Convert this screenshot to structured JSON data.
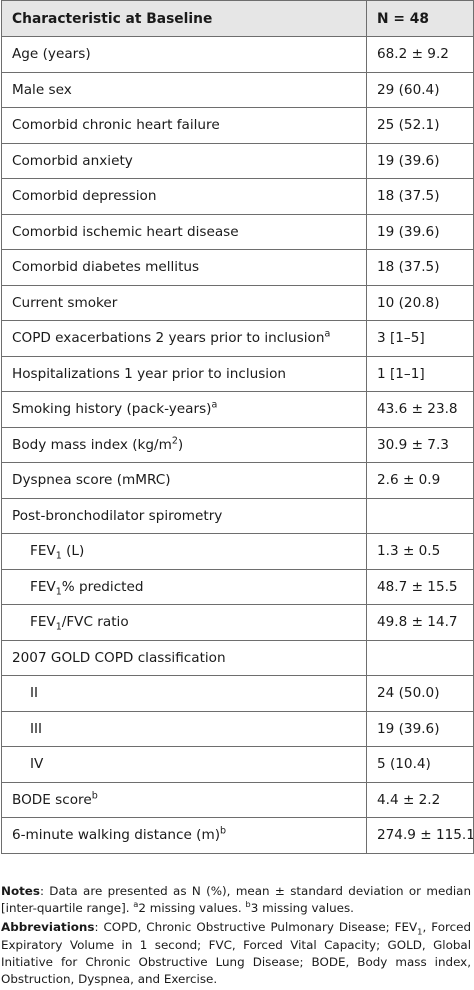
{
  "table": {
    "header": {
      "characteristic": "Characteristic at Baseline",
      "value": "N = 48"
    },
    "rows": [
      {
        "pre": "Age (years)",
        "val": "68.2 ± 9.2"
      },
      {
        "pre": "Male sex",
        "val": "29 (60.4)"
      },
      {
        "pre": "Comorbid chronic heart failure",
        "val": "25 (52.1)"
      },
      {
        "pre": "Comorbid anxiety",
        "val": "19 (39.6)"
      },
      {
        "pre": "Comorbid depression",
        "val": "18 (37.5)"
      },
      {
        "pre": "Comorbid ischemic heart disease",
        "val": "19 (39.6)"
      },
      {
        "pre": "Comorbid diabetes mellitus",
        "val": "18 (37.5)"
      },
      {
        "pre": "Current smoker",
        "val": "10 (20.8)"
      },
      {
        "pre": "COPD exacerbations 2 years prior to inclusion",
        "sup": "a",
        "val": "3 [1–5]"
      },
      {
        "pre": "Hospitalizations 1 year prior to inclusion",
        "val": "1 [1–1]"
      },
      {
        "pre": "Smoking history (pack-years)",
        "sup": "a",
        "val": "43.6 ± 23.8"
      },
      {
        "pre": "Body mass index (kg/m",
        "sup": "2",
        "post": ")",
        "val": "30.9 ± 7.3"
      },
      {
        "pre": "Dyspnea score (mMRC)",
        "val": "2.6 ± 0.9"
      },
      {
        "pre": "Post-bronchodilator spirometry",
        "val": ""
      },
      {
        "pre": "FEV",
        "sub": "1",
        "post": " (L)",
        "val": "1.3 ± 0.5",
        "indent": true
      },
      {
        "pre": "FEV",
        "sub": "1",
        "post": "% predicted",
        "val": "48.7 ± 15.5",
        "indent": true
      },
      {
        "pre": "FEV",
        "sub": "1",
        "post": "/FVC ratio",
        "val": "49.8 ± 14.7",
        "indent": true
      },
      {
        "pre": "2007 GOLD COPD classification",
        "val": ""
      },
      {
        "pre": "II",
        "val": "24 (50.0)",
        "indent": true
      },
      {
        "pre": "III",
        "val": "19 (39.6)",
        "indent": true
      },
      {
        "pre": "IV",
        "val": "5 (10.4)",
        "indent": true
      },
      {
        "pre": "BODE score",
        "sup": "b",
        "val": "4.4 ± 2.2"
      },
      {
        "pre": "6-minute walking distance (m)",
        "sup": "b",
        "val": "274.9 ± 115.1"
      }
    ]
  },
  "notes": {
    "notes_label": "Notes",
    "notes_text_1": ": Data are presented as N (%), mean ± standard deviation or median [inter-quartile range]. ",
    "notes_sup_a": "a",
    "notes_text_2": "2 missing values. ",
    "notes_sup_b": "b",
    "notes_text_3": "3 missing values.",
    "abbr_label": "Abbreviations",
    "abbr_text_1": ": COPD, Chronic Obstructive Pulmonary Disease; FEV",
    "abbr_sub": "1",
    "abbr_text_2": ", Forced Expiratory Volume in 1 second; FVC, Forced Vital Capacity; GOLD, Global Initiative for Chronic Obstructive Lung Disease; BODE, Body mass index, Obstruction, Dyspnea, and Exercise."
  }
}
